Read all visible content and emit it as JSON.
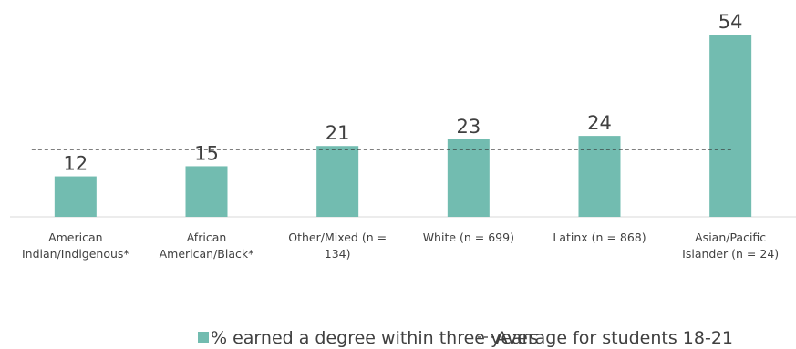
{
  "chart_data": {
    "type": "bar",
    "categories": [
      [
        "American",
        "Indian/Indigenous*"
      ],
      [
        "African",
        "American/Black*"
      ],
      [
        "Other/Mixed (n =",
        "134)"
      ],
      [
        "White (n = 699)"
      ],
      [
        "Latinx (n = 868)"
      ],
      [
        "Asian/Pacific",
        "Islander (n = 24)"
      ]
    ],
    "series": [
      {
        "name": "% earned a degree within three years",
        "values": [
          12,
          15,
          21,
          23,
          24,
          54
        ],
        "color": "#72bcb0"
      }
    ],
    "reference_line": {
      "name": "Average for students 18-21",
      "value": 20,
      "style": "dashed",
      "color": "#333333"
    },
    "ylim": [
      0,
      54
    ],
    "grid": false,
    "legend": "bottom"
  }
}
